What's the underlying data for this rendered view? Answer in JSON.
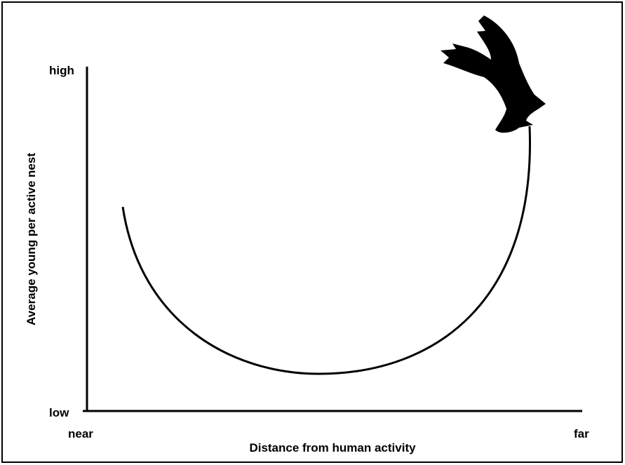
{
  "axes": {
    "y_label": "Average young per active nest",
    "y_high": "high",
    "y_low": "low",
    "x_label": "Distance from human activity",
    "x_near": "near",
    "x_far": "far"
  }
}
